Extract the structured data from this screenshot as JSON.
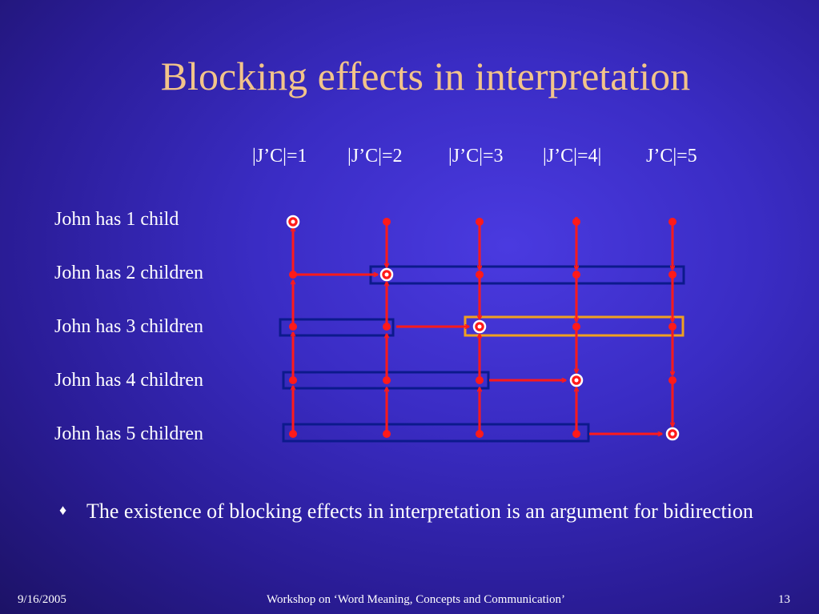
{
  "slide": {
    "title": "Blocking effects in interpretation",
    "columns": [
      "|J’C|=1",
      "|J’C|=2",
      "|J’C|=3",
      "|J’C|=4|",
      "J’C|=5"
    ],
    "rows": [
      "John has 1 child",
      "John has 2 children",
      "John has 3 children",
      "John has 4 children",
      "John has 5 children"
    ],
    "bullet": {
      "marker": "♦",
      "text": "The existence of blocking effects in interpretation is an argument for bidirection"
    },
    "footer": {
      "date": "9/16/2005",
      "center": "Workshop on ‘Word Meaning, Concepts and Communication’",
      "page": "13"
    }
  },
  "colors": {
    "title": "#f2c48a",
    "arrow": "#ff1a1a",
    "box": "#0c1a8c",
    "highlight_box": "#f0a020"
  }
}
